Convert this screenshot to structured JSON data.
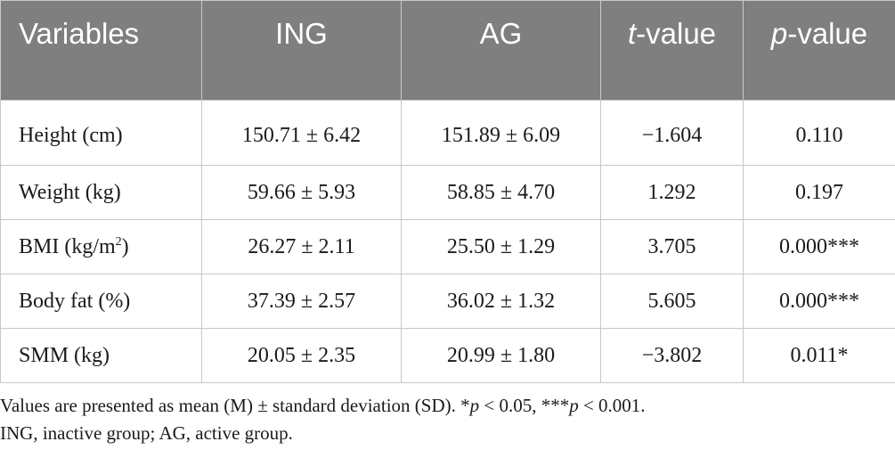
{
  "table": {
    "headers": [
      {
        "text": "Variables"
      },
      {
        "text": "ING"
      },
      {
        "text": "AG"
      },
      {
        "italic": "t",
        "text": "-value"
      },
      {
        "italic": "p",
        "text": "-value"
      }
    ],
    "rows": [
      {
        "variable": "Height (cm)",
        "ing": "150.71 ± 6.42",
        "ag": "151.89 ± 6.09",
        "t": "−1.604",
        "p": "0.110"
      },
      {
        "variable": "Weight (kg)",
        "ing": "59.66 ± 5.93",
        "ag": "58.85 ± 4.70",
        "t": "1.292",
        "p": "0.197"
      },
      {
        "variable": "BMI (kg/m",
        "variable_sup": "2",
        "variable_end": ")",
        "ing": "26.27 ± 2.11",
        "ag": "25.50 ± 1.29",
        "t": "3.705",
        "p": "0.000***"
      },
      {
        "variable": "Body fat (%)",
        "ing": "37.39 ± 2.57",
        "ag": "36.02 ± 1.32",
        "t": "5.605",
        "p": "0.000***"
      },
      {
        "variable": "SMM (kg)",
        "ing": "20.05 ± 2.35",
        "ag": "20.99 ± 1.80",
        "t": "−3.802",
        "p": "0.011*"
      }
    ]
  },
  "footnote": {
    "line1_a": "Values are presented as mean (M) ± standard deviation (SD). *",
    "line1_p1": "p",
    "line1_b": " < 0.05, ***",
    "line1_p2": "p",
    "line1_c": " < 0.001.",
    "line2": "ING, inactive group; AG, active group."
  },
  "colors": {
    "header_bg": "#7f7f7f",
    "header_text": "#ffffff",
    "border": "#c8c8c8"
  }
}
